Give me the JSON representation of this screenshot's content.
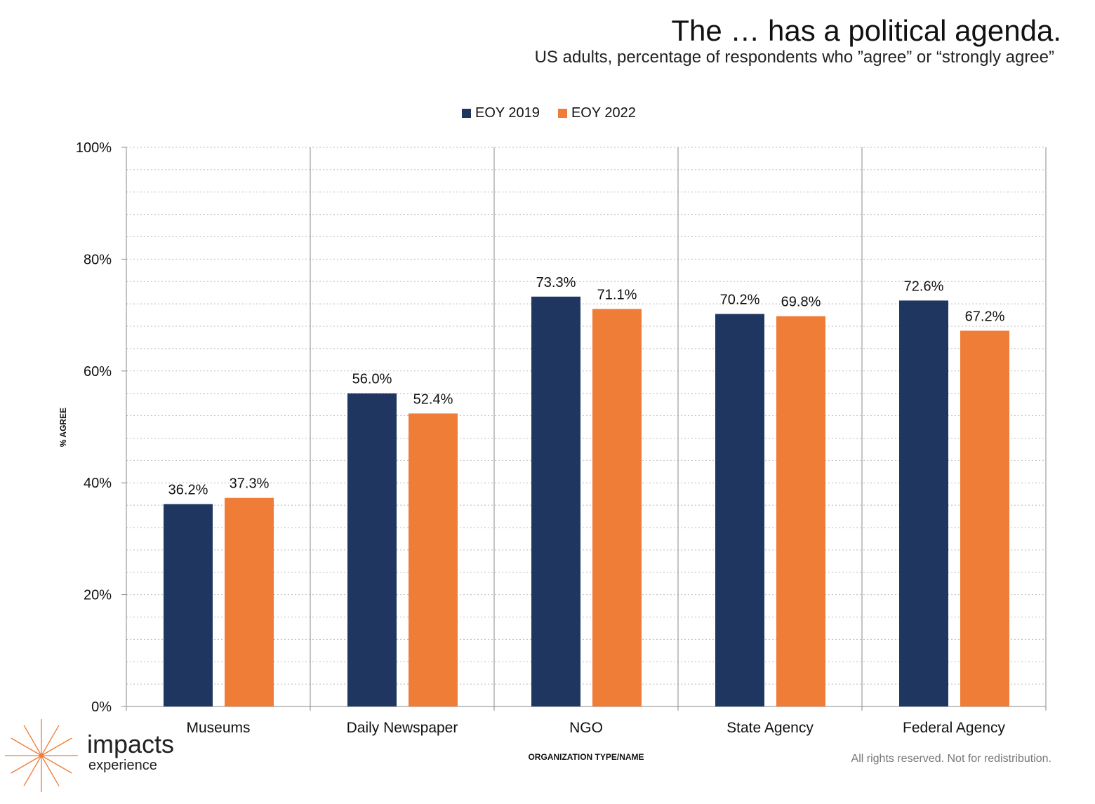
{
  "title": "The … has a political agenda.",
  "subtitle": "US adults, percentage of respondents who ”agree” or “strongly agree”",
  "footer": "All rights reserved. Not for redistribution.",
  "logo": {
    "line1": "impacts",
    "line2": "experience",
    "accent": "#f07c36"
  },
  "chart_data": {
    "type": "bar",
    "xlabel": "ORGANIZATION TYPE/NAME",
    "ylabel": "% AGREE",
    "ylim": [
      0,
      100
    ],
    "yticks": [
      "0%",
      "20%",
      "40%",
      "60%",
      "80%",
      "100%"
    ],
    "grid": true,
    "legend_position": "top",
    "categories": [
      "Museums",
      "Daily Newspaper",
      "NGO",
      "State Agency",
      "Federal Agency"
    ],
    "series": [
      {
        "name": "EOY 2019",
        "color": "#1f3660",
        "values": [
          36.2,
          56.0,
          73.3,
          70.2,
          72.6
        ],
        "labels": [
          "36.2%",
          "56.0%",
          "73.3%",
          "70.2%",
          "72.6%"
        ]
      },
      {
        "name": "EOY 2022",
        "color": "#ef7d38",
        "values": [
          37.3,
          52.4,
          71.1,
          69.8,
          67.2
        ],
        "labels": [
          "37.3%",
          "52.4%",
          "71.1%",
          "69.8%",
          "67.2%"
        ]
      }
    ]
  }
}
